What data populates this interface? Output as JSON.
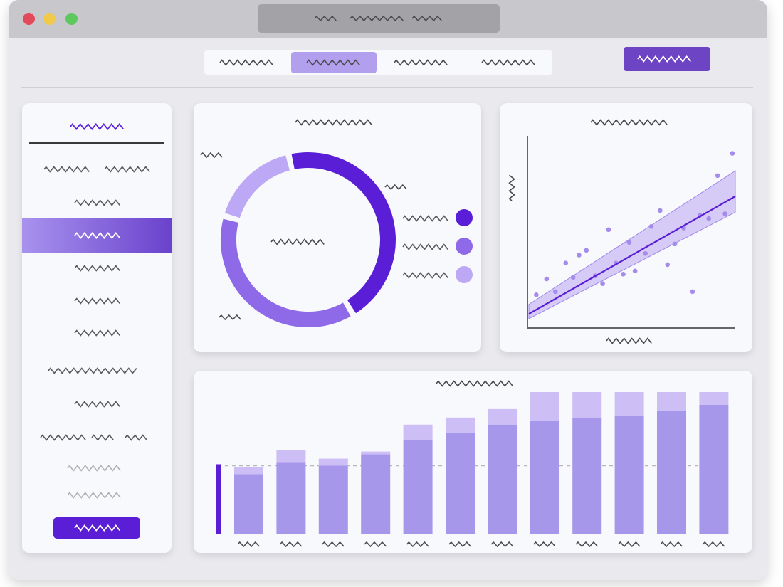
{
  "colors": {
    "accent": "#5a1ed6",
    "accent_mid": "#8f6ae8",
    "accent_light": "#bca8f4",
    "bar": "#a797ea",
    "bar_top": "#cbbdf5",
    "squiggle": "#4a4a4a",
    "squiggle_light": "#a6a6a6"
  },
  "window": {
    "controls": [
      "close-icon",
      "minimize-icon",
      "maximize-icon"
    ]
  },
  "nav": {
    "tabs": [
      {
        "icon": "placeholder-text-icon",
        "active": false
      },
      {
        "icon": "placeholder-text-icon",
        "active": true
      },
      {
        "icon": "placeholder-text-icon",
        "active": false
      },
      {
        "icon": "placeholder-text-icon",
        "active": false
      }
    ],
    "action_icon": "placeholder-text-icon"
  },
  "sidebar": {
    "active_index": 2,
    "item_count": 11
  },
  "donut": {
    "segments": [
      {
        "value": 45,
        "color": "#5a1ed6"
      },
      {
        "value": 38,
        "color": "#8f6ae8"
      },
      {
        "value": 17,
        "color": "#bca8f4"
      }
    ]
  },
  "chart_data": [
    {
      "type": "scatter",
      "x": [
        0.5,
        1.2,
        1.8,
        2.5,
        3.0,
        3.4,
        3.9,
        4.5,
        5.0,
        5.4,
        5.9,
        6.4,
        6.8,
        7.2,
        7.9,
        8.3,
        8.9,
        9.4,
        9.9,
        10.5,
        11.1,
        11.6,
        12.2,
        12.8,
        13.3,
        13.8
      ],
      "y": [
        2.0,
        3.0,
        2.2,
        4.0,
        3.1,
        4.5,
        4.8,
        3.2,
        2.7,
        6.1,
        4.0,
        3.3,
        5.3,
        3.5,
        4.6,
        6.3,
        7.3,
        3.9,
        5.2,
        6.2,
        2.2,
        7.0,
        6.8,
        9.5,
        7.1,
        10.9
      ],
      "fit": {
        "x": [
          0,
          14
        ],
        "y": [
          0.8,
          8.2
        ]
      },
      "xlim": [
        0,
        14
      ],
      "ylim": [
        0,
        12
      ],
      "grid": false
    },
    {
      "type": "bar",
      "categories": [
        "",
        "",
        "",
        "",
        "",
        "",
        "",
        "",
        "",
        "",
        "",
        ""
      ],
      "series": [
        {
          "values": [
            42,
            50,
            48,
            56,
            66,
            71,
            77,
            80,
            82,
            83,
            87,
            91
          ]
        },
        {
          "values": [
            47,
            59,
            53,
            58,
            77,
            82,
            88,
            100,
            100,
            100,
            100,
            100
          ]
        }
      ],
      "reference_line": 48,
      "ylim": [
        0,
        100
      ],
      "grid": false
    }
  ]
}
